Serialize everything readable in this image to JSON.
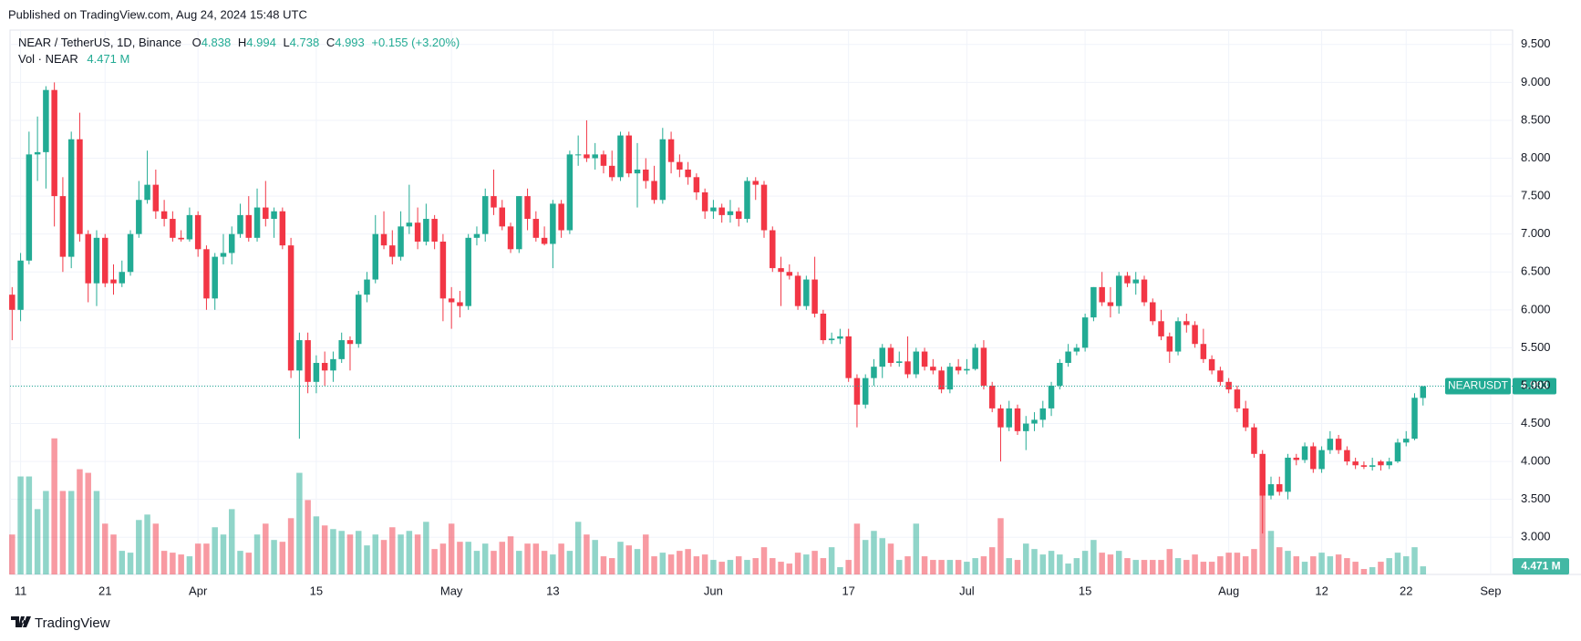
{
  "chart_data": {
    "type": "candlestick",
    "published": "Published on TradingView.com, Aug 24, 2024 15:48 UTC",
    "symbol": "NEAR / TetherUS, 1D, Binance",
    "ohlc_labels": [
      "O",
      "H",
      "L",
      "C"
    ],
    "change": "+0.155 (+3.20%)",
    "volume_title": "Vol · NEAR",
    "last_volume_label": "4.471 M",
    "ticker_tag": "NEARUSDT",
    "brand": "TradingView",
    "up_color": "#22ab94",
    "down_color": "#f23645",
    "grid": true,
    "ylim": [
      2.51,
      9.69
    ],
    "yticks": [
      {
        "value": 3,
        "label": "3.000"
      },
      {
        "value": 3.5,
        "label": "3.500"
      },
      {
        "value": 4,
        "label": "4.000"
      },
      {
        "value": 4.5,
        "label": "4.500"
      },
      {
        "value": 5,
        "label": "5.000"
      },
      {
        "value": 5.5,
        "label": "5.500"
      },
      {
        "value": 6,
        "label": "6.000"
      },
      {
        "value": 6.5,
        "label": "6.500"
      },
      {
        "value": 7,
        "label": "7.000"
      },
      {
        "value": 7.5,
        "label": "7.500"
      },
      {
        "value": 8,
        "label": "8.000"
      },
      {
        "value": 8.5,
        "label": "8.500"
      },
      {
        "value": 9,
        "label": "9.000"
      },
      {
        "value": 9.5,
        "label": "9.500"
      }
    ],
    "volume_ylim": [
      0,
      300
    ],
    "xlim": [
      -0.25,
      177.6
    ],
    "xticks": [
      {
        "value": 1,
        "label": "11"
      },
      {
        "value": 11,
        "label": "21"
      },
      {
        "value": 22,
        "label": "Apr"
      },
      {
        "value": 36,
        "label": "15"
      },
      {
        "value": 52,
        "label": "May"
      },
      {
        "value": 64,
        "label": "13"
      },
      {
        "value": 83,
        "label": "Jun"
      },
      {
        "value": 99,
        "label": "17"
      },
      {
        "value": 113,
        "label": "Jul"
      },
      {
        "value": 127,
        "label": "15"
      },
      {
        "value": 144,
        "label": "Aug"
      },
      {
        "value": 155,
        "label": "12"
      },
      {
        "value": 165,
        "label": "22"
      },
      {
        "value": 175,
        "label": "Sep"
      }
    ],
    "ohlc": [
      [
        6.2,
        6.3,
        5.6,
        6.0
      ],
      [
        6.0,
        6.75,
        5.85,
        6.65
      ],
      [
        6.65,
        8.35,
        6.6,
        8.05
      ],
      [
        8.05,
        8.55,
        7.7,
        8.08
      ],
      [
        8.08,
        8.95,
        7.6,
        8.9
      ],
      [
        8.9,
        9.0,
        7.1,
        7.5
      ],
      [
        7.5,
        7.75,
        6.5,
        6.7
      ],
      [
        6.7,
        8.35,
        6.55,
        8.25
      ],
      [
        8.25,
        8.6,
        6.9,
        7.0
      ],
      [
        7.0,
        7.05,
        6.1,
        6.35
      ],
      [
        6.35,
        7.05,
        6.05,
        6.95
      ],
      [
        6.95,
        7.0,
        6.3,
        6.35
      ],
      [
        6.4,
        6.6,
        6.2,
        6.35
      ],
      [
        6.35,
        6.65,
        6.3,
        6.5
      ],
      [
        6.5,
        7.05,
        6.45,
        7.0
      ],
      [
        7.0,
        7.7,
        6.95,
        7.45
      ],
      [
        7.45,
        8.1,
        7.4,
        7.65
      ],
      [
        7.65,
        7.85,
        7.2,
        7.3
      ],
      [
        7.3,
        7.45,
        7.1,
        7.2
      ],
      [
        7.2,
        7.3,
        6.9,
        6.95
      ],
      [
        6.95,
        7.05,
        6.9,
        6.93
      ],
      [
        6.93,
        7.35,
        6.9,
        7.25
      ],
      [
        7.25,
        7.3,
        6.7,
        6.8
      ],
      [
        6.8,
        6.85,
        6.0,
        6.15
      ],
      [
        6.15,
        6.75,
        6.0,
        6.7
      ],
      [
        6.7,
        7.0,
        6.6,
        6.75
      ],
      [
        6.75,
        7.1,
        6.6,
        7.0
      ],
      [
        7.0,
        7.4,
        6.95,
        7.25
      ],
      [
        7.25,
        7.5,
        6.9,
        6.95
      ],
      [
        6.95,
        7.6,
        6.9,
        7.35
      ],
      [
        7.35,
        7.7,
        7.1,
        7.2
      ],
      [
        7.2,
        7.35,
        6.95,
        7.3
      ],
      [
        7.3,
        7.35,
        6.8,
        6.85
      ],
      [
        6.85,
        6.95,
        5.1,
        5.2
      ],
      [
        5.2,
        5.7,
        4.3,
        5.6
      ],
      [
        5.6,
        5.7,
        4.9,
        5.05
      ],
      [
        5.05,
        5.4,
        4.9,
        5.3
      ],
      [
        5.3,
        5.45,
        5.0,
        5.2
      ],
      [
        5.2,
        5.45,
        5.05,
        5.35
      ],
      [
        5.35,
        5.7,
        5.3,
        5.6
      ],
      [
        5.6,
        5.65,
        5.2,
        5.55
      ],
      [
        5.55,
        6.25,
        5.5,
        6.2
      ],
      [
        6.2,
        6.5,
        6.1,
        6.4
      ],
      [
        6.4,
        7.25,
        6.35,
        7.0
      ],
      [
        7.0,
        7.3,
        6.8,
        6.85
      ],
      [
        6.85,
        7.05,
        6.6,
        6.7
      ],
      [
        6.7,
        7.3,
        6.65,
        7.1
      ],
      [
        7.1,
        7.65,
        7.0,
        7.15
      ],
      [
        7.15,
        7.35,
        6.8,
        6.9
      ],
      [
        6.9,
        7.4,
        6.85,
        7.2
      ],
      [
        7.2,
        7.25,
        6.8,
        6.9
      ],
      [
        6.9,
        7.0,
        5.85,
        6.15
      ],
      [
        6.15,
        6.3,
        5.75,
        6.1
      ],
      [
        6.1,
        6.25,
        5.9,
        6.05
      ],
      [
        6.05,
        7.0,
        6.0,
        6.95
      ],
      [
        6.95,
        7.1,
        6.85,
        7.0
      ],
      [
        7.0,
        7.6,
        6.9,
        7.5
      ],
      [
        7.5,
        7.85,
        7.25,
        7.35
      ],
      [
        7.35,
        7.45,
        7.05,
        7.1
      ],
      [
        7.1,
        7.15,
        6.75,
        6.8
      ],
      [
        6.8,
        7.5,
        6.75,
        7.5
      ],
      [
        7.5,
        7.6,
        7.05,
        7.2
      ],
      [
        7.2,
        7.3,
        6.9,
        6.95
      ],
      [
        6.95,
        7.1,
        6.85,
        6.87
      ],
      [
        6.87,
        7.45,
        6.55,
        7.4
      ],
      [
        7.4,
        7.45,
        6.95,
        7.05
      ],
      [
        7.05,
        8.1,
        7.0,
        8.05
      ],
      [
        8.05,
        8.3,
        7.9,
        8.05
      ],
      [
        8.05,
        8.5,
        7.95,
        8.0
      ],
      [
        8.0,
        8.2,
        7.85,
        8.05
      ],
      [
        8.05,
        8.1,
        7.8,
        7.9
      ],
      [
        7.9,
        8.1,
        7.7,
        7.75
      ],
      [
        7.75,
        8.35,
        7.7,
        8.3
      ],
      [
        8.3,
        8.35,
        7.75,
        7.8
      ],
      [
        7.8,
        8.2,
        7.35,
        7.85
      ],
      [
        7.85,
        8.0,
        7.6,
        7.7
      ],
      [
        7.7,
        7.9,
        7.4,
        7.45
      ],
      [
        7.45,
        8.4,
        7.4,
        8.25
      ],
      [
        8.25,
        8.35,
        7.8,
        7.95
      ],
      [
        7.95,
        8.05,
        7.75,
        7.85
      ],
      [
        7.85,
        7.95,
        7.65,
        7.75
      ],
      [
        7.75,
        7.8,
        7.45,
        7.55
      ],
      [
        7.55,
        7.6,
        7.2,
        7.3
      ],
      [
        7.3,
        7.45,
        7.2,
        7.35
      ],
      [
        7.35,
        7.4,
        7.15,
        7.25
      ],
      [
        7.25,
        7.45,
        7.15,
        7.3
      ],
      [
        7.3,
        7.35,
        7.1,
        7.2
      ],
      [
        7.2,
        7.75,
        7.15,
        7.7
      ],
      [
        7.7,
        7.75,
        7.45,
        7.65
      ],
      [
        7.65,
        7.7,
        6.95,
        7.05
      ],
      [
        7.05,
        7.1,
        6.5,
        6.55
      ],
      [
        6.55,
        6.7,
        6.05,
        6.5
      ],
      [
        6.5,
        6.6,
        6.4,
        6.45
      ],
      [
        6.45,
        6.5,
        6.0,
        6.05
      ],
      [
        6.05,
        6.45,
        6.0,
        6.4
      ],
      [
        6.4,
        6.7,
        5.9,
        5.95
      ],
      [
        5.95,
        6.0,
        5.55,
        5.6
      ],
      [
        5.6,
        5.7,
        5.55,
        5.62
      ],
      [
        5.62,
        5.75,
        5.55,
        5.65
      ],
      [
        5.65,
        5.75,
        5.05,
        5.1
      ],
      [
        5.1,
        5.15,
        4.45,
        4.75
      ],
      [
        4.75,
        5.15,
        4.7,
        5.1
      ],
      [
        5.1,
        5.35,
        5.0,
        5.25
      ],
      [
        5.25,
        5.55,
        5.1,
        5.5
      ],
      [
        5.5,
        5.55,
        5.25,
        5.3
      ],
      [
        5.3,
        5.45,
        5.25,
        5.32
      ],
      [
        5.32,
        5.65,
        5.1,
        5.15
      ],
      [
        5.15,
        5.5,
        5.1,
        5.45
      ],
      [
        5.45,
        5.5,
        5.2,
        5.25
      ],
      [
        5.25,
        5.35,
        5.15,
        5.2
      ],
      [
        5.2,
        5.25,
        4.9,
        4.95
      ],
      [
        4.95,
        5.3,
        4.9,
        5.25
      ],
      [
        5.25,
        5.35,
        5.15,
        5.2
      ],
      [
        5.2,
        5.35,
        5.15,
        5.22
      ],
      [
        5.22,
        5.55,
        5.2,
        5.5
      ],
      [
        5.5,
        5.6,
        4.95,
        5.0
      ],
      [
        5.0,
        5.05,
        4.65,
        4.7
      ],
      [
        4.7,
        4.75,
        4.0,
        4.45
      ],
      [
        4.45,
        4.8,
        4.4,
        4.7
      ],
      [
        4.7,
        4.75,
        4.35,
        4.4
      ],
      [
        4.4,
        4.6,
        4.15,
        4.5
      ],
      [
        4.5,
        4.65,
        4.4,
        4.55
      ],
      [
        4.55,
        4.8,
        4.45,
        4.7
      ],
      [
        4.7,
        5.05,
        4.6,
        5.0
      ],
      [
        5.0,
        5.35,
        4.95,
        5.3
      ],
      [
        5.3,
        5.55,
        5.25,
        5.45
      ],
      [
        5.45,
        5.55,
        5.4,
        5.5
      ],
      [
        5.5,
        5.95,
        5.45,
        5.9
      ],
      [
        5.9,
        6.3,
        5.85,
        6.3
      ],
      [
        6.3,
        6.5,
        6.05,
        6.1
      ],
      [
        6.1,
        6.3,
        5.9,
        6.05
      ],
      [
        6.05,
        6.5,
        5.95,
        6.45
      ],
      [
        6.45,
        6.5,
        6.3,
        6.35
      ],
      [
        6.35,
        6.5,
        6.2,
        6.4
      ],
      [
        6.4,
        6.45,
        6.05,
        6.1
      ],
      [
        6.1,
        6.15,
        5.8,
        5.85
      ],
      [
        5.85,
        6.0,
        5.6,
        5.65
      ],
      [
        5.65,
        5.7,
        5.3,
        5.45
      ],
      [
        5.45,
        5.9,
        5.4,
        5.85
      ],
      [
        5.85,
        5.95,
        5.7,
        5.8
      ],
      [
        5.8,
        5.85,
        5.5,
        5.55
      ],
      [
        5.55,
        5.75,
        5.3,
        5.35
      ],
      [
        5.35,
        5.4,
        5.15,
        5.2
      ],
      [
        5.2,
        5.25,
        5.0,
        5.05
      ],
      [
        5.05,
        5.1,
        4.9,
        4.95
      ],
      [
        4.95,
        5.0,
        4.65,
        4.7
      ],
      [
        4.7,
        4.8,
        4.4,
        4.45
      ],
      [
        4.45,
        4.5,
        4.05,
        4.1
      ],
      [
        4.1,
        4.15,
        3.05,
        3.55
      ],
      [
        3.55,
        3.8,
        3.5,
        3.7
      ],
      [
        3.7,
        3.8,
        3.55,
        3.6
      ],
      [
        3.6,
        4.1,
        3.5,
        4.05
      ],
      [
        4.05,
        4.1,
        3.95,
        4.02
      ],
      [
        4.02,
        4.25,
        3.98,
        4.2
      ],
      [
        4.2,
        4.25,
        3.85,
        3.9
      ],
      [
        3.9,
        4.2,
        3.85,
        4.15
      ],
      [
        4.15,
        4.4,
        4.1,
        4.3
      ],
      [
        4.3,
        4.35,
        4.1,
        4.15
      ],
      [
        4.15,
        4.2,
        3.95,
        4.0
      ],
      [
        4.0,
        4.05,
        3.9,
        3.95
      ],
      [
        3.95,
        4.0,
        3.9,
        3.93
      ],
      [
        3.93,
        4.05,
        3.88,
        3.95
      ],
      [
        4.0,
        4.02,
        3.88,
        3.95
      ],
      [
        3.95,
        4.05,
        3.9,
        4.0
      ],
      [
        4.0,
        4.3,
        3.98,
        4.25
      ],
      [
        4.25,
        4.4,
        4.2,
        4.3
      ],
      [
        4.3,
        4.9,
        4.28,
        4.84
      ],
      [
        4.838,
        4.994,
        4.738,
        4.993
      ]
    ],
    "volume": [
      22,
      54,
      54,
      36,
      46,
      75,
      46,
      46,
      58,
      56,
      46,
      28,
      22,
      13,
      12,
      30,
      33,
      28,
      13,
      12,
      11,
      10,
      17,
      17,
      26,
      22,
      36,
      13,
      12,
      22,
      28,
      19,
      18,
      31,
      56,
      41,
      32,
      27,
      25,
      24,
      22,
      24,
      16,
      22,
      19,
      26,
      22,
      24,
      22,
      29,
      14,
      17,
      28,
      18,
      18,
      13,
      17,
      13,
      18,
      21,
      13,
      17,
      17,
      13,
      11,
      17,
      13,
      29,
      22,
      19,
      10,
      9,
      18,
      16,
      14,
      22,
      10,
      12,
      11,
      13,
      14,
      10,
      11,
      8,
      7,
      8,
      10,
      8,
      9,
      15,
      9,
      7,
      6,
      12,
      11,
      13,
      9,
      15,
      4,
      8,
      28,
      19,
      24,
      20,
      17,
      8,
      10,
      28,
      10,
      8,
      8,
      8,
      8,
      7,
      9,
      10,
      15,
      31,
      9,
      8,
      17,
      14,
      11,
      13,
      11,
      6,
      9,
      13,
      19,
      12,
      11,
      13,
      9,
      8,
      8,
      8,
      8,
      14,
      9,
      8,
      11,
      7,
      7,
      10,
      12,
      12,
      10,
      14,
      44,
      24,
      15,
      13,
      10,
      7,
      10,
      12,
      10,
      11,
      9,
      7,
      3,
      4,
      7,
      9,
      12,
      10,
      15,
      4.471
    ]
  }
}
